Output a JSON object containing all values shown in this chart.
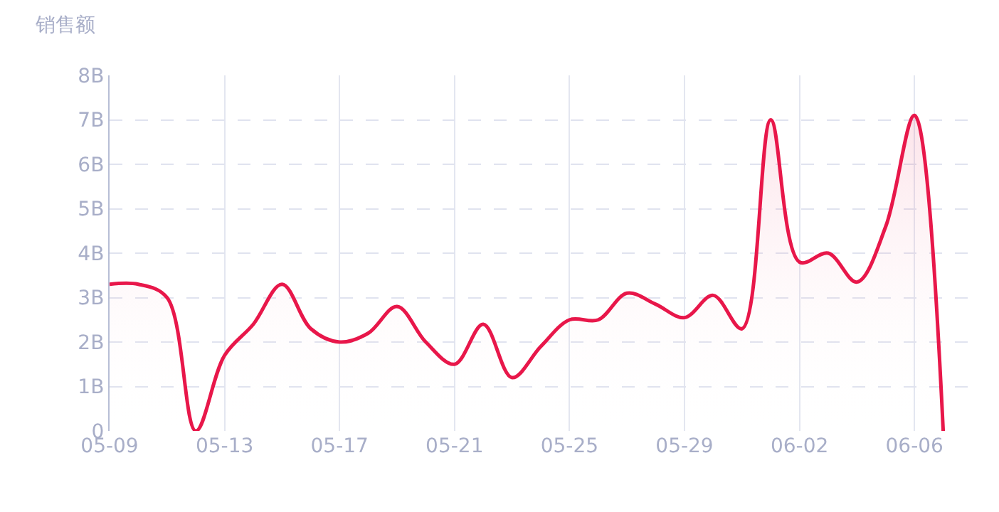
{
  "chart_data": {
    "type": "area",
    "ylabel": "销售额",
    "x": [
      "--05-09",
      "--05-10",
      "--05-11",
      "--05-12",
      "--05-13",
      "--05-14",
      "--05-15",
      "--05-16",
      "--05-17",
      "--05-18",
      "--05-19",
      "--05-20",
      "--05-21",
      "--05-22",
      "--05-23",
      "--05-24",
      "--05-25",
      "--05-26",
      "--05-27",
      "--05-28",
      "--05-29",
      "--05-30",
      "--05-31",
      "--06-01",
      "--06-02",
      "--06-03",
      "--06-04",
      "--06-05",
      "--06-06",
      "--06-07"
    ],
    "series": [
      {
        "color": "#e8174a",
        "values": [
          3.3,
          3.3,
          3.0,
          0,
          1.7,
          2.4,
          3.3,
          2.3,
          2.0,
          2.2,
          2.8,
          2.0,
          1.5,
          2.4,
          1.2,
          1.9,
          2.5,
          2.5,
          3.1,
          2.85,
          2.55,
          3.05,
          2.3,
          7.0,
          3.8,
          4.0,
          3.35,
          4.6,
          7.1,
          0
        ]
      }
    ],
    "xlim": [
      "--05-09",
      "--06-08"
    ],
    "xticks": [
      {
        "value": "--05-09",
        "label": "05-09"
      },
      {
        "value": "--05-13",
        "label": "05-13"
      },
      {
        "value": "--05-17",
        "label": "05-17"
      },
      {
        "value": "--05-21",
        "label": "05-21"
      },
      {
        "value": "--05-25",
        "label": "05-25"
      },
      {
        "value": "--05-29",
        "label": "05-29"
      },
      {
        "value": "--06-02",
        "label": "06-02"
      },
      {
        "value": "--06-06",
        "label": "06-06"
      }
    ],
    "ylim": [
      0,
      8
    ],
    "yticks": [
      0,
      {
        "value": 1,
        "label": "1B"
      },
      {
        "value": 2,
        "label": "2B"
      },
      {
        "value": 3,
        "label": "3B"
      },
      {
        "value": 4,
        "label": "4B"
      },
      {
        "value": 5,
        "label": "5B"
      },
      {
        "value": 6,
        "label": "6B"
      },
      {
        "value": 7,
        "label": "7B"
      },
      {
        "value": 8,
        "label": "8B"
      }
    ],
    "grid": true,
    "marker": "none",
    "line_style": "solid"
  }
}
